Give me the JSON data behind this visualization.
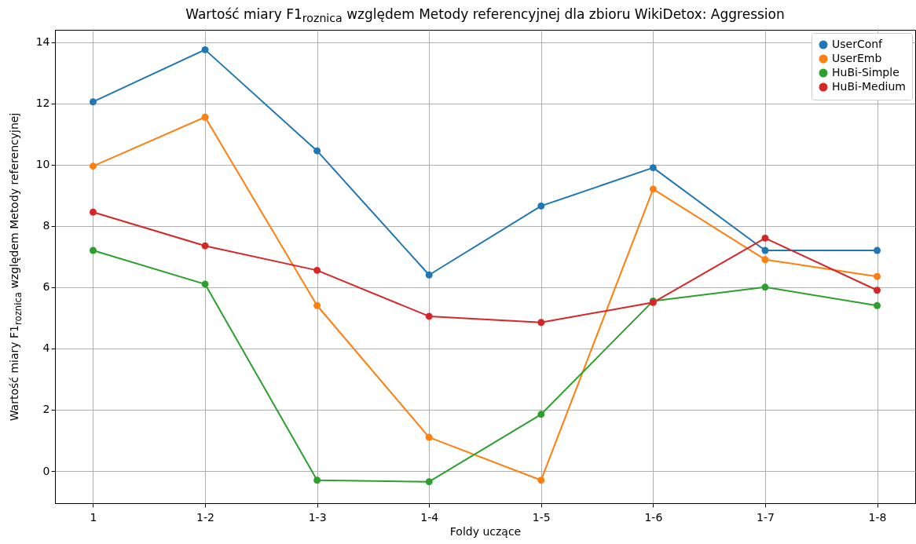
{
  "chart_data": {
    "type": "line",
    "title": "Wartość miary F1$_{roznica}$ względem Metody referencyjnej dla zbioru WikiDetox: Aggression",
    "xlabel": "Foldy uczące",
    "ylabel": "Wartość miary F1$_{roznica}$ względem Metody referencyjnej",
    "categories": [
      "1",
      "1-2",
      "1-3",
      "1-4",
      "1-5",
      "1-6",
      "1-7",
      "1-8"
    ],
    "series": [
      {
        "name": "UserConf",
        "color": "#1f77b4",
        "values": [
          12.05,
          13.75,
          10.45,
          6.4,
          8.65,
          9.9,
          7.2,
          7.2
        ]
      },
      {
        "name": "UserEmb",
        "color": "#ff7f0e",
        "values": [
          9.95,
          11.55,
          5.4,
          1.1,
          -0.3,
          9.2,
          6.9,
          6.35
        ]
      },
      {
        "name": "HuBi-Simple",
        "color": "#2ca02c",
        "values": [
          7.2,
          6.1,
          -0.3,
          -0.35,
          1.85,
          5.55,
          6.0,
          5.4
        ]
      },
      {
        "name": "HuBi-Medium",
        "color": "#d62728",
        "values": [
          8.45,
          7.35,
          6.55,
          5.05,
          4.85,
          5.5,
          7.6,
          5.9
        ]
      }
    ],
    "ylim": [
      -1.05,
      14.4
    ],
    "yticks": [
      0,
      2,
      4,
      6,
      8,
      10,
      12,
      14
    ],
    "grid": true,
    "legend": "top right",
    "marker": "circle",
    "line_style": "solid"
  }
}
